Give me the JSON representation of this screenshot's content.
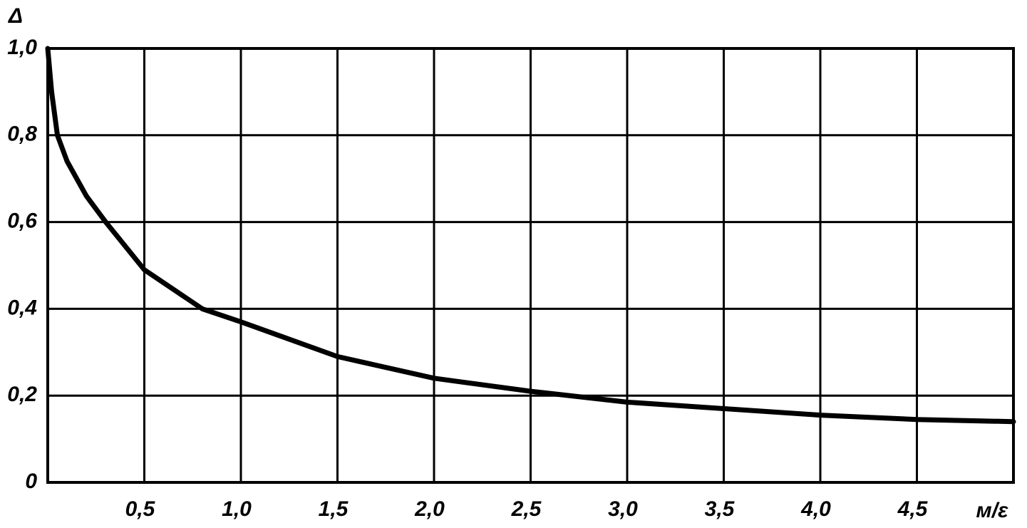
{
  "chart_data": {
    "type": "line",
    "y_label": "Δ",
    "x_label": "м/ε",
    "x": [
      0,
      0.02,
      0.05,
      0.1,
      0.2,
      0.3,
      0.5,
      0.8,
      1.0,
      1.5,
      2.0,
      2.5,
      3.0,
      3.5,
      4.0,
      4.5,
      5.0
    ],
    "values": [
      1.0,
      0.9,
      0.8,
      0.74,
      0.66,
      0.6,
      0.49,
      0.4,
      0.37,
      0.29,
      0.24,
      0.21,
      0.185,
      0.17,
      0.155,
      0.145,
      0.14
    ],
    "color": "#000000",
    "xlim": [
      0,
      5
    ],
    "ylim": [
      0,
      1.0
    ],
    "xticks": [
      {
        "value": 0.5,
        "label": "0,5"
      },
      {
        "value": 1.0,
        "label": "1,0"
      },
      {
        "value": 1.5,
        "label": "1,5"
      },
      {
        "value": 2.0,
        "label": "2,0"
      },
      {
        "value": 2.5,
        "label": "2,5"
      },
      {
        "value": 3.0,
        "label": "3,0"
      },
      {
        "value": 3.5,
        "label": "3,5"
      },
      {
        "value": 4.0,
        "label": "4,0"
      },
      {
        "value": 4.5,
        "label": "4,5"
      }
    ],
    "yticks": [
      0,
      {
        "value": 0.2,
        "label": "0,2"
      },
      {
        "value": 0.4,
        "label": "0,4"
      },
      {
        "value": 0.6,
        "label": "0,6"
      },
      {
        "value": 0.8,
        "label": "0,8"
      },
      {
        "value": 1.0,
        "label": "1,0"
      }
    ],
    "grid": true
  }
}
